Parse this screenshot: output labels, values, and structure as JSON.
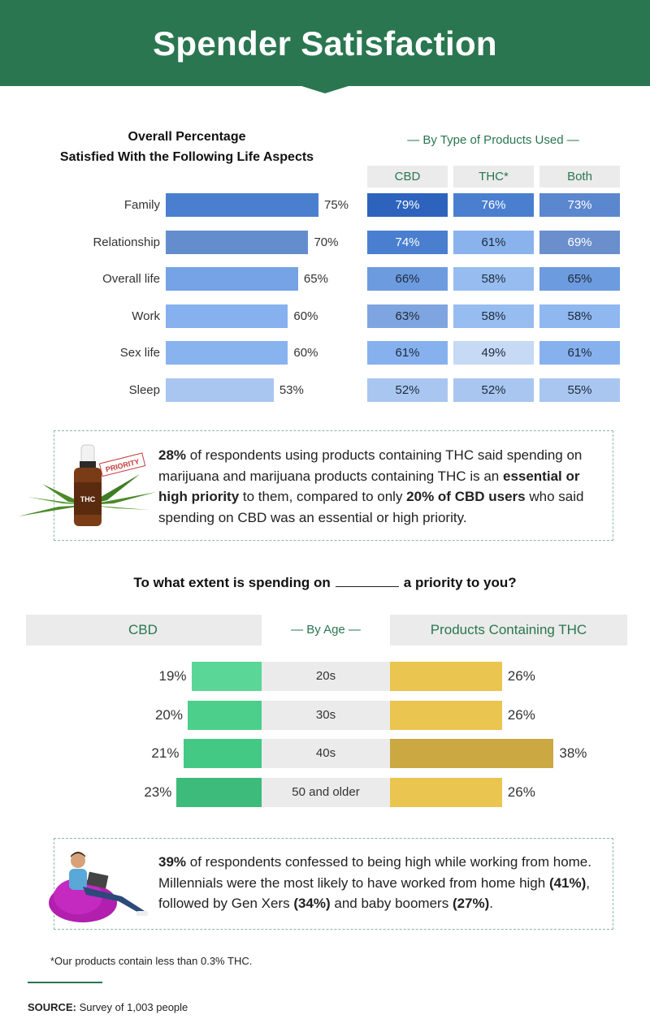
{
  "title": "Spender Satisfaction",
  "section1": {
    "title_line1": "Overall Percentage",
    "title_line2": "Satisfied With the Following Life Aspects",
    "by_type_label": "— By Type of Products Used —",
    "columns": [
      "CBD",
      "THC*",
      "Both"
    ]
  },
  "chart_data": [
    {
      "type": "bar",
      "orientation": "horizontal",
      "title": "Overall Percentage Satisfied With the Following Life Aspects",
      "categories": [
        "Family",
        "Relationship",
        "Overall life",
        "Work",
        "Sex life",
        "Sleep"
      ],
      "values": [
        75,
        70,
        65,
        60,
        60,
        53
      ],
      "value_labels": [
        "75%",
        "70%",
        "65%",
        "60%",
        "60%",
        "53%"
      ],
      "colors": [
        "#4a7fd0",
        "#648dce",
        "#76a2e6",
        "#86b1ee",
        "#88b3ef",
        "#a8c6f0"
      ]
    },
    {
      "type": "heatmap",
      "title": "By Type of Products Used",
      "rows": [
        "Family",
        "Relationship",
        "Overall life",
        "Work",
        "Sex life",
        "Sleep"
      ],
      "columns": [
        "CBD",
        "THC*",
        "Both"
      ],
      "values": [
        [
          79,
          76,
          73
        ],
        [
          74,
          61,
          69
        ],
        [
          66,
          58,
          65
        ],
        [
          63,
          58,
          58
        ],
        [
          61,
          49,
          61
        ],
        [
          52,
          52,
          55
        ]
      ],
      "labels": [
        [
          "79%",
          "76%",
          "73%"
        ],
        [
          "74%",
          "61%",
          "69%"
        ],
        [
          "66%",
          "58%",
          "65%"
        ],
        [
          "63%",
          "58%",
          "58%"
        ],
        [
          "61%",
          "49%",
          "61%"
        ],
        [
          "52%",
          "52%",
          "55%"
        ]
      ],
      "colors": [
        [
          "#2d63bd",
          "#4a7fd0",
          "#5b87cf"
        ],
        [
          "#4a7fd0",
          "#8ab3ee",
          "#6a8fcc"
        ],
        [
          "#6c9be0",
          "#97bdf0",
          "#6c9be0"
        ],
        [
          "#7fa5e0",
          "#97bdf0",
          "#8fb7f0"
        ],
        [
          "#86b1ee",
          "#c6d9f5",
          "#86b1ee"
        ],
        [
          "#a8c6f0",
          "#a8c6f0",
          "#a8c6f0"
        ]
      ]
    },
    {
      "type": "bar",
      "orientation": "horizontal-diverging",
      "title": "To what extent is spending on ________ a priority to you?",
      "categories": [
        "20s",
        "30s",
        "40s",
        "50 and older"
      ],
      "series": [
        {
          "name": "CBD",
          "values": [
            19,
            20,
            21,
            23
          ],
          "labels": [
            "19%",
            "20%",
            "21%",
            "23%"
          ],
          "colors": [
            "#5ad696",
            "#4ccf8a",
            "#44c984",
            "#3dbb7b"
          ]
        },
        {
          "name": "Products Containing THC",
          "values": [
            26,
            26,
            38,
            26
          ],
          "labels": [
            "26%",
            "26%",
            "38%",
            "26%"
          ],
          "colors": [
            "#eac54f",
            "#eac54f",
            "#cba841",
            "#eac54f"
          ]
        }
      ]
    }
  ],
  "callout1": {
    "image_label": "THC",
    "tag_label": "PRIORITY",
    "p1": "28%",
    "p2": " of respondents using products containing THC said spending on marijuana and marijuana products containing THC is an ",
    "p3": "essential or high priority",
    "p4": " to them, compared to only ",
    "p5": "20% of CBD users",
    "p6": " who said spending on CBD was an essential or high priority."
  },
  "section2": {
    "question_part1": "To what extent is spending on",
    "question_part2": "a priority to you?",
    "cbd_label": "CBD",
    "by_age_label": "— By Age —",
    "thc_label": "Products Containing THC"
  },
  "callout2": {
    "p1": "39%",
    "p2": " of respondents confessed to being high while working from home. Millennials were the most likely to have worked from home high ",
    "p3": "(41%)",
    "p4": ", followed by Gen Xers ",
    "p5": "(34%)",
    "p6": " and baby boomers ",
    "p7": "(27%)",
    "p8": "."
  },
  "footnote": "*Our products contain less than 0.3% THC.",
  "source_label": "SOURCE:",
  "source_text": " Survey of 1,003 people"
}
